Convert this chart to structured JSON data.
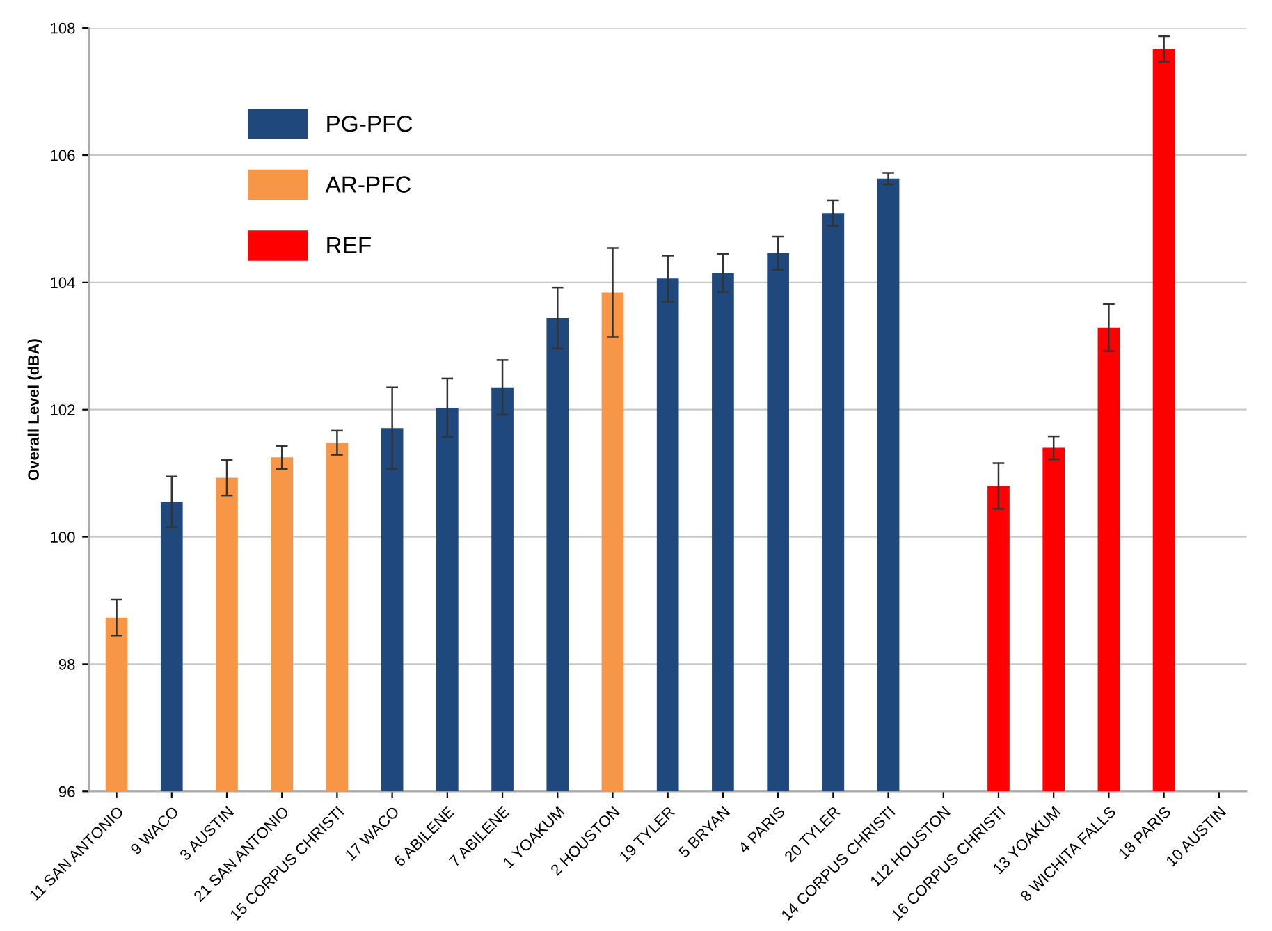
{
  "chart_data": {
    "type": "bar",
    "ylabel": "Overall Level (dBA)",
    "categories": [
      "11 SAN ANTONIO",
      "9 WACO",
      "3 AUSTIN",
      "21 SAN ANTONIO",
      "15 CORPUS CHRISTI",
      "17 WACO",
      "6 ABILENE",
      "7 ABILENE",
      "1 YOAKUM",
      "2 HOUSTON",
      "19 TYLER",
      "5 BRYAN",
      "4 PARIS",
      "20 TYLER",
      "14 CORPUS CHRISTI",
      "112 HOUSTON",
      "16 CORPUS CHRISTI",
      "13 YOAKUM",
      "8 WICHITA FALLS",
      "18 PARIS",
      "10 AUSTIN"
    ],
    "series": [
      {
        "name": "PG-PFC",
        "color": "#1f497d",
        "values": [
          null,
          100.55,
          null,
          null,
          null,
          101.71,
          102.03,
          102.35,
          103.44,
          null,
          104.06,
          104.15,
          104.46,
          105.09,
          105.63,
          null,
          null,
          null,
          null,
          null,
          null
        ],
        "errors": [
          null,
          0.4,
          null,
          null,
          null,
          0.64,
          0.46,
          0.43,
          0.48,
          null,
          0.36,
          0.3,
          0.26,
          0.2,
          0.09,
          null,
          null,
          null,
          null,
          null,
          null
        ]
      },
      {
        "name": "AR-PFC",
        "color": "#f79646",
        "values": [
          98.73,
          null,
          100.93,
          101.25,
          101.48,
          null,
          null,
          null,
          null,
          103.84,
          null,
          null,
          null,
          null,
          null,
          null,
          null,
          null,
          null,
          null,
          null
        ],
        "errors": [
          0.28,
          null,
          0.28,
          0.18,
          0.19,
          null,
          null,
          null,
          null,
          0.7,
          null,
          null,
          null,
          null,
          null,
          null,
          null,
          null,
          null,
          null,
          null
        ]
      },
      {
        "name": "REF",
        "color": "#ff0000",
        "values": [
          null,
          null,
          null,
          null,
          null,
          null,
          null,
          null,
          null,
          null,
          null,
          null,
          null,
          null,
          null,
          null,
          100.8,
          101.4,
          103.29,
          107.67,
          null
        ],
        "errors": [
          null,
          null,
          null,
          null,
          null,
          null,
          null,
          null,
          null,
          null,
          null,
          null,
          null,
          null,
          null,
          null,
          0.36,
          0.18,
          0.37,
          0.2,
          null
        ]
      }
    ],
    "ylim": [
      96,
      108
    ],
    "yticks": [
      96,
      98,
      100,
      102,
      104,
      106,
      108
    ],
    "grid": "y",
    "legend": "top left"
  }
}
